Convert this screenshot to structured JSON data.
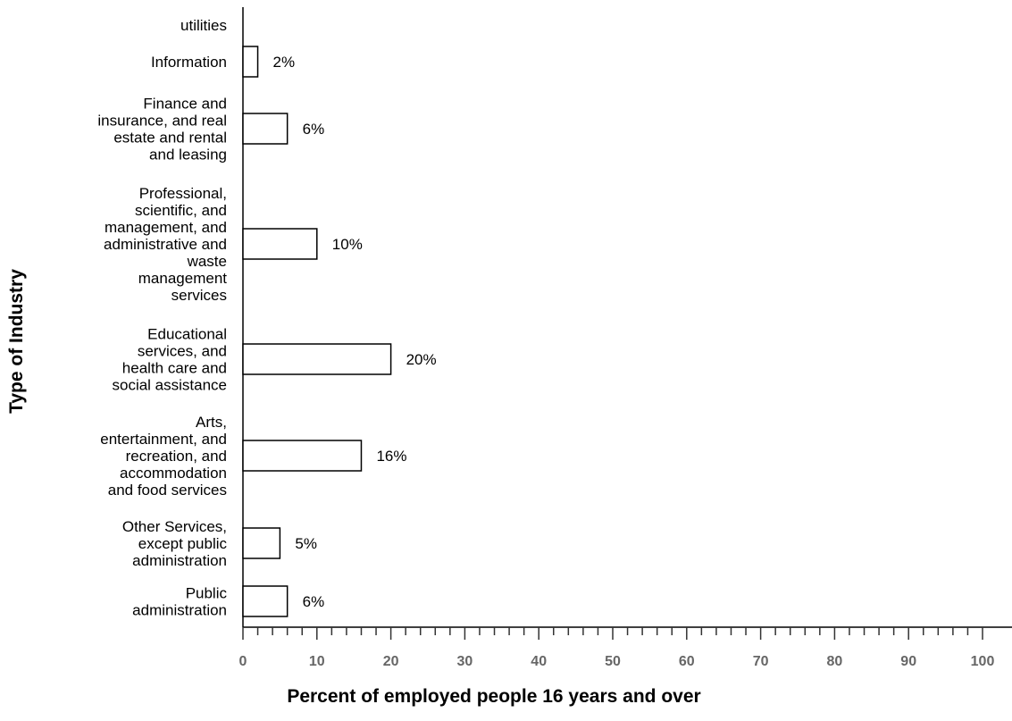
{
  "chart_data": {
    "type": "bar",
    "orientation": "horizontal",
    "categories": [
      [
        "utilities"
      ],
      [
        "Information"
      ],
      [
        "Finance and",
        "insurance, and real",
        "estate and rental",
        "and leasing"
      ],
      [
        "Professional,",
        "scientific, and",
        "management, and",
        "administrative and",
        "waste",
        "management",
        "services"
      ],
      [
        "Educational",
        "services, and",
        "health care and",
        "social assistance"
      ],
      [
        "Arts,",
        "entertainment, and",
        "recreation, and",
        "accommodation",
        "and food services"
      ],
      [
        "Other Services,",
        "except public",
        "administration"
      ],
      [
        "Public",
        "administration"
      ]
    ],
    "values": [
      null,
      2,
      6,
      10,
      20,
      16,
      5,
      6
    ],
    "value_labels": [
      "",
      "2%",
      "6%",
      "10%",
      "20%",
      "16%",
      "5%",
      "6%"
    ],
    "xlabel": "Percent of employed people 16 years and over",
    "ylabel": "Type of Industry",
    "xlim": [
      0,
      100
    ],
    "xticks": [
      "0",
      "10",
      "20",
      "30",
      "40",
      "50",
      "60",
      "70",
      "80",
      "90",
      "100"
    ],
    "grid": false,
    "legend": "none"
  }
}
